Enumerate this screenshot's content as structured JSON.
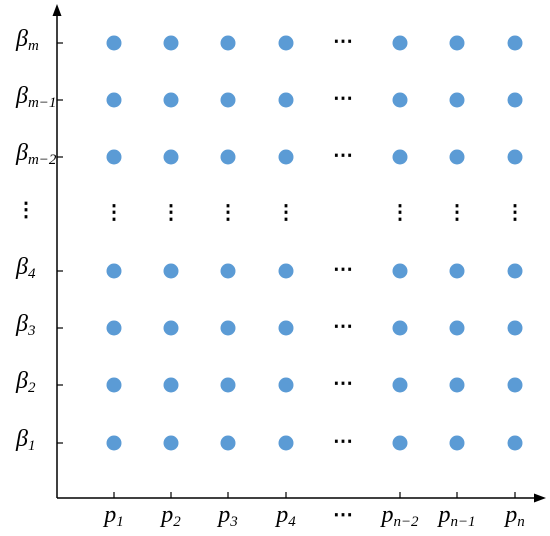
{
  "x_labels": [
    {
      "base": "p",
      "sub": "1"
    },
    {
      "base": "p",
      "sub": "2"
    },
    {
      "base": "p",
      "sub": "3"
    },
    {
      "base": "p",
      "sub": "4"
    },
    {
      "base": "⋯"
    },
    {
      "base": "p",
      "sub": "n−2"
    },
    {
      "base": "p",
      "sub": "n−1"
    },
    {
      "base": "p",
      "sub": "n"
    }
  ],
  "y_labels": [
    {
      "base": "β",
      "sub": "m"
    },
    {
      "base": "β",
      "sub": "m−1"
    },
    {
      "base": "β",
      "sub": "m−2"
    },
    {
      "base": "⋮"
    },
    {
      "base": "β",
      "sub": "4"
    },
    {
      "base": "β",
      "sub": "3"
    },
    {
      "base": "β",
      "sub": "2"
    },
    {
      "base": "β",
      "sub": "1"
    }
  ],
  "grid_ellipsis": {
    "horizontal": "⋯",
    "vertical": "⋮"
  }
}
